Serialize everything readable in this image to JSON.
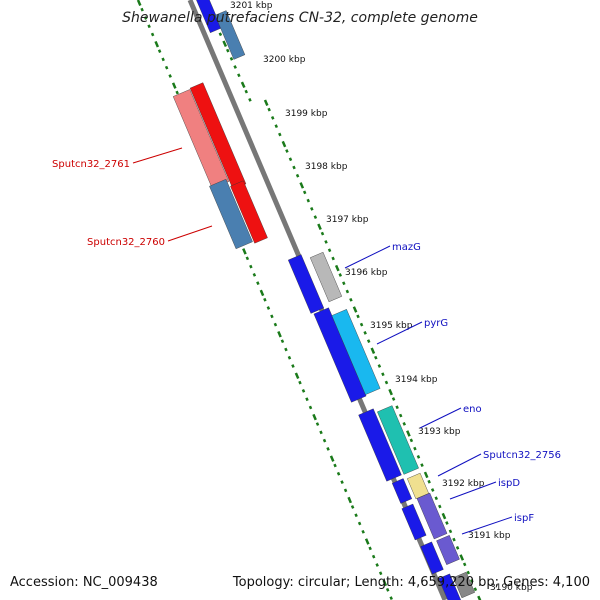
{
  "title": "Shewanella putrefaciens CN-32, complete genome",
  "footer": {
    "accession": "Accession: NC_009438",
    "summary": "Topology: circular; Length: 4,659,220 bp; Genes: 4,100"
  },
  "colors": {
    "background": "#ffffff",
    "backbone": "#777777",
    "tick": "#1a7a1a",
    "label_plus": "#1010c0",
    "label_minus": "#cc0000"
  },
  "kbp_ticks": [
    "3201 kbp",
    "3200 kbp",
    "3199 kbp",
    "3198 kbp",
    "3197 kbp",
    "3196 kbp",
    "3195 kbp",
    "3194 kbp",
    "3193 kbp",
    "3192 kbp",
    "3191 kbp",
    "3190 kbp"
  ],
  "genes_minus": [
    {
      "label": "Sputcn32_2761",
      "color": "#f08080"
    },
    {
      "label": "Sputcn32_2760",
      "color": "#4a7fb0"
    }
  ],
  "genes_plus": [
    {
      "label": "mazG",
      "color": "#b8b8b8"
    },
    {
      "label": "pyrG",
      "color": "#19b8ef"
    },
    {
      "label": "eno",
      "color": "#1fc0b0"
    },
    {
      "label": "Sputcn32_2756",
      "color": "#f0e090"
    },
    {
      "label": "ispD",
      "color": "#6a5ad0"
    },
    {
      "label": "ispF",
      "color": "#6a5ad0"
    }
  ]
}
